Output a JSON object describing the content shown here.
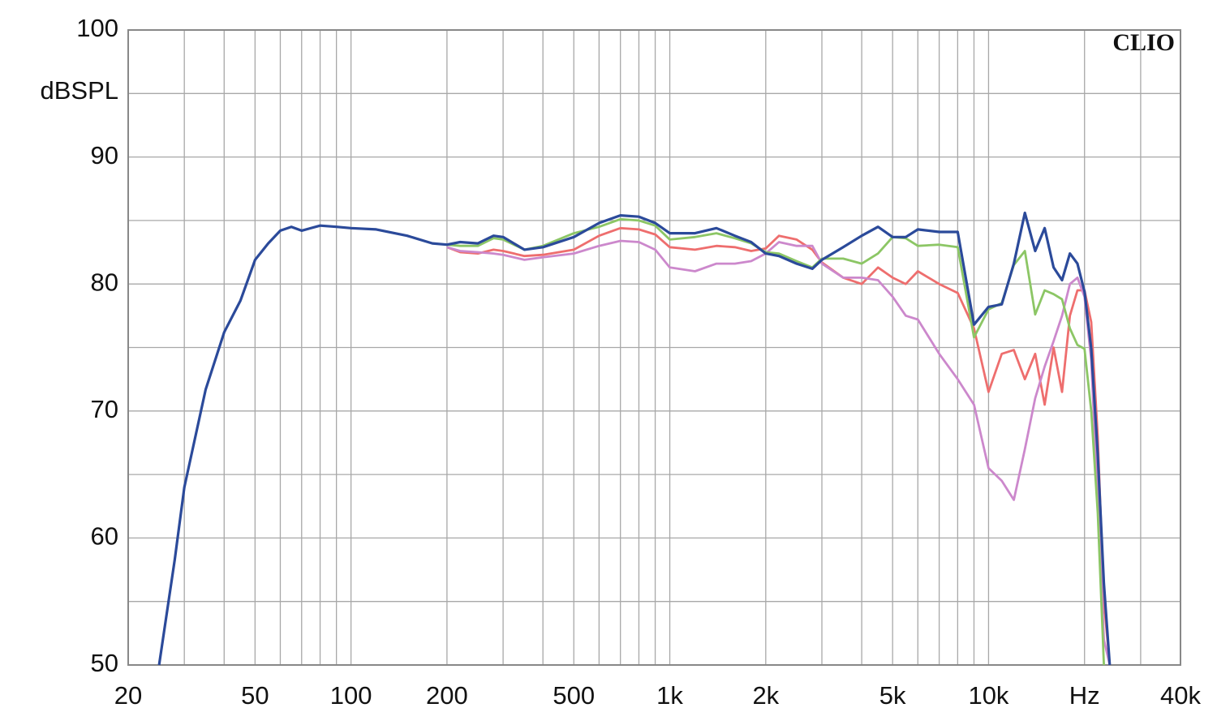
{
  "chart_data": {
    "type": "line",
    "y_label": "dBSPL",
    "annotation": "CLIO",
    "log_x": true,
    "grid": true,
    "x": [
      25,
      28,
      30,
      35,
      40,
      45,
      50,
      55,
      60,
      65,
      70,
      80,
      90,
      100,
      120,
      150,
      180,
      200,
      220,
      250,
      280,
      300,
      350,
      400,
      500,
      600,
      700,
      800,
      900,
      1000,
      1200,
      1400,
      1600,
      1800,
      2000,
      2200,
      2500,
      2800,
      3000,
      3500,
      4000,
      4500,
      5000,
      5500,
      6000,
      7000,
      8000,
      9000,
      10000,
      11000,
      12000,
      13000,
      14000,
      15000,
      16000,
      17000,
      18000,
      19000,
      20000,
      21000,
      22000,
      23000,
      24000
    ],
    "series": [
      {
        "color": "#ee6e6e",
        "values": [
          null,
          null,
          null,
          null,
          null,
          null,
          null,
          null,
          null,
          null,
          null,
          null,
          null,
          null,
          null,
          null,
          null,
          82.9,
          82.5,
          82.4,
          82.7,
          82.6,
          82.2,
          82.3,
          82.7,
          83.8,
          84.4,
          84.3,
          83.9,
          82.9,
          82.7,
          83.0,
          82.9,
          82.6,
          82.8,
          83.8,
          83.5,
          82.7,
          81.7,
          80.5,
          80.0,
          81.3,
          80.5,
          80.0,
          81.0,
          80.0,
          79.3,
          76.5,
          71.5,
          74.5,
          74.8,
          72.5,
          74.5,
          70.5,
          75.0,
          71.5,
          77.5,
          79.5,
          79.5,
          77,
          68,
          55,
          50
        ]
      },
      {
        "color": "#cc88cc",
        "values": [
          null,
          null,
          null,
          null,
          null,
          null,
          null,
          null,
          null,
          null,
          null,
          null,
          null,
          null,
          null,
          null,
          null,
          82.9,
          82.6,
          82.5,
          82.4,
          82.3,
          81.9,
          82.1,
          82.4,
          83.0,
          83.4,
          83.3,
          82.7,
          81.3,
          81.0,
          81.6,
          81.6,
          81.8,
          82.4,
          83.3,
          83.0,
          83.0,
          81.6,
          80.5,
          80.5,
          80.3,
          79.0,
          77.5,
          77.2,
          74.5,
          72.5,
          70.5,
          65.5,
          64.5,
          63.0,
          67.0,
          71,
          73.5,
          75.5,
          77.5,
          80.0,
          80.5,
          79.0,
          74,
          63,
          52,
          50
        ]
      },
      {
        "color": "#8cc665",
        "values": [
          null,
          null,
          null,
          null,
          null,
          null,
          null,
          null,
          null,
          null,
          null,
          null,
          null,
          null,
          null,
          null,
          null,
          83.1,
          83.0,
          83.0,
          83.6,
          83.5,
          82.7,
          83.0,
          84.0,
          84.5,
          85.1,
          85.0,
          84.6,
          83.5,
          83.7,
          84.0,
          83.6,
          83.2,
          82.5,
          82.4,
          81.8,
          81.3,
          82.0,
          82.0,
          81.6,
          82.4,
          83.7,
          83.6,
          83.0,
          83.1,
          82.9,
          75.8,
          78.0,
          78.5,
          81.5,
          82.6,
          77.6,
          79.5,
          79.2,
          78.8,
          76.5,
          75.2,
          74.9,
          70,
          62,
          50,
          null
        ]
      },
      {
        "color": "#2b4a9a",
        "values": [
          50,
          58.3,
          64,
          71.7,
          76.2,
          78.7,
          81.9,
          83.2,
          84.2,
          84.5,
          84.2,
          84.6,
          84.5,
          84.4,
          84.3,
          83.8,
          83.2,
          83.1,
          83.3,
          83.2,
          83.8,
          83.7,
          82.7,
          82.9,
          83.7,
          84.8,
          85.4,
          85.3,
          84.8,
          84.0,
          84.0,
          84.4,
          83.8,
          83.3,
          82.4,
          82.2,
          81.6,
          81.2,
          81.9,
          82.9,
          83.8,
          84.5,
          83.7,
          83.7,
          84.3,
          84.1,
          84.1,
          76.8,
          78.2,
          78.4,
          81.6,
          85.6,
          82.6,
          84.4,
          81.3,
          80.3,
          82.4,
          81.6,
          79.4,
          74.9,
          66.6,
          56.4,
          50
        ]
      }
    ],
    "xlim": [
      20,
      40000
    ],
    "xticks": [
      20,
      50,
      100,
      200,
      500,
      {
        "value": 1000,
        "label": "1k"
      },
      {
        "value": 2000,
        "label": "2k"
      },
      {
        "value": 5000,
        "label": "5k"
      },
      {
        "value": 10000,
        "label": "10k"
      },
      {
        "value": 20000,
        "label": "Hz"
      },
      {
        "value": 40000,
        "label": "40k"
      }
    ],
    "xgrid": [
      30,
      40,
      60,
      70,
      80,
      90,
      300,
      400,
      600,
      700,
      800,
      900,
      3000,
      4000,
      6000,
      7000,
      8000,
      9000,
      30000
    ],
    "ylim": [
      50,
      100
    ],
    "yticks": [
      50,
      60,
      70,
      80,
      90,
      100
    ],
    "ygrid": [
      55,
      65,
      75,
      85,
      95
    ]
  }
}
